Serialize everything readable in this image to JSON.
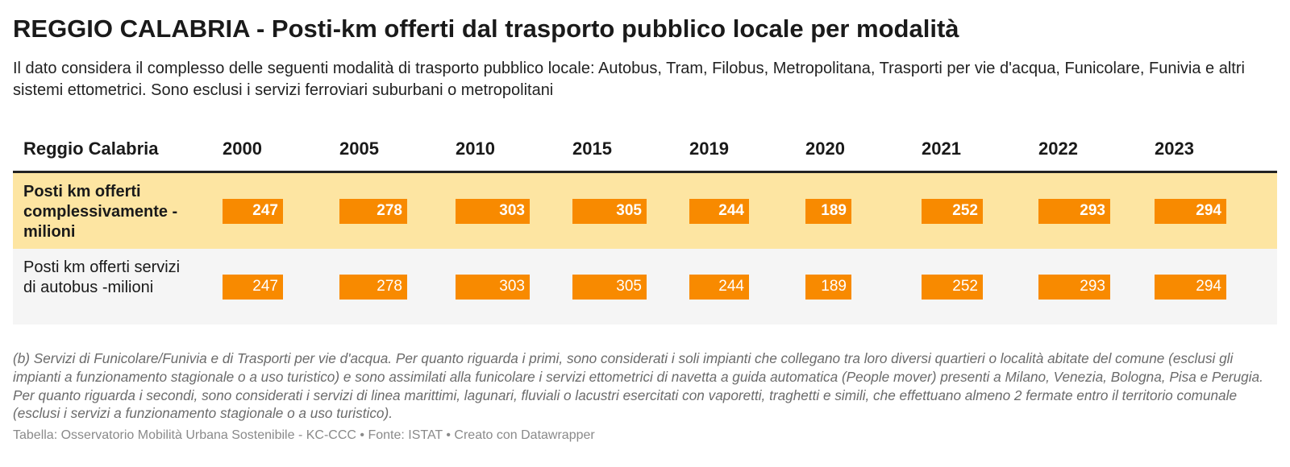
{
  "title": "REGGIO CALABRIA - Posti-km offerti dal trasporto pubblico locale per modalità",
  "subtitle": "Il dato considera il complesso delle seguenti modalità di trasporto pubblico locale: Autobus, Tram, Filobus, Metropolitana, Trasporti per vie d'acqua, Funicolare, Funivia e altri sistemi ettometrici. Sono esclusi i servizi ferroviari suburbani o metropolitani",
  "notes": "(b) Servizi di Funicolare/Funivia e di Trasporti per vie d'acqua. Per quanto riguarda i primi, sono considerati i soli impianti che collegano tra loro diversi quartieri o località abitate del comune (esclusi gli impianti a funzionamento stagionale o a uso turistico) e sono assimilati alla funicolare i servizi ettometrici di navetta a guida automatica (People mover) presenti a Milano, Venezia, Bologna, Pisa e Perugia. Per quanto riguarda i secondi, sono considerati i servizi di linea marittimi, lagunari, fluviali o lacustri esercitati con vaporetti, traghetti e simili, che effettuano almeno 2 fermate entro il territorio comunale (esclusi i servizi a funzionamento stagionale o a uso turistico).",
  "footer": "Tabella: Osservatorio Mobilità Urbana Sostenibile - KC-CCC • Fonte: ISTAT • Creato con Datawrapper",
  "colors": {
    "bar": "#f88a00",
    "highlight_row": "#fde5a2",
    "plain_row": "#f5f5f5"
  },
  "chart_data": {
    "type": "table",
    "row_header": "Reggio Calabria",
    "categories": [
      "2000",
      "2005",
      "2010",
      "2015",
      "2019",
      "2020",
      "2021",
      "2022",
      "2023"
    ],
    "bar_scale_max": 310,
    "series": [
      {
        "name": "Posti km offerti complessivamente -milioni",
        "highlighted": true,
        "values": [
          247,
          278,
          303,
          305,
          244,
          189,
          252,
          293,
          294
        ]
      },
      {
        "name": "Posti km offerti servizi di autobus -milioni",
        "highlighted": false,
        "values": [
          247,
          278,
          303,
          305,
          244,
          189,
          252,
          293,
          294
        ]
      }
    ]
  }
}
